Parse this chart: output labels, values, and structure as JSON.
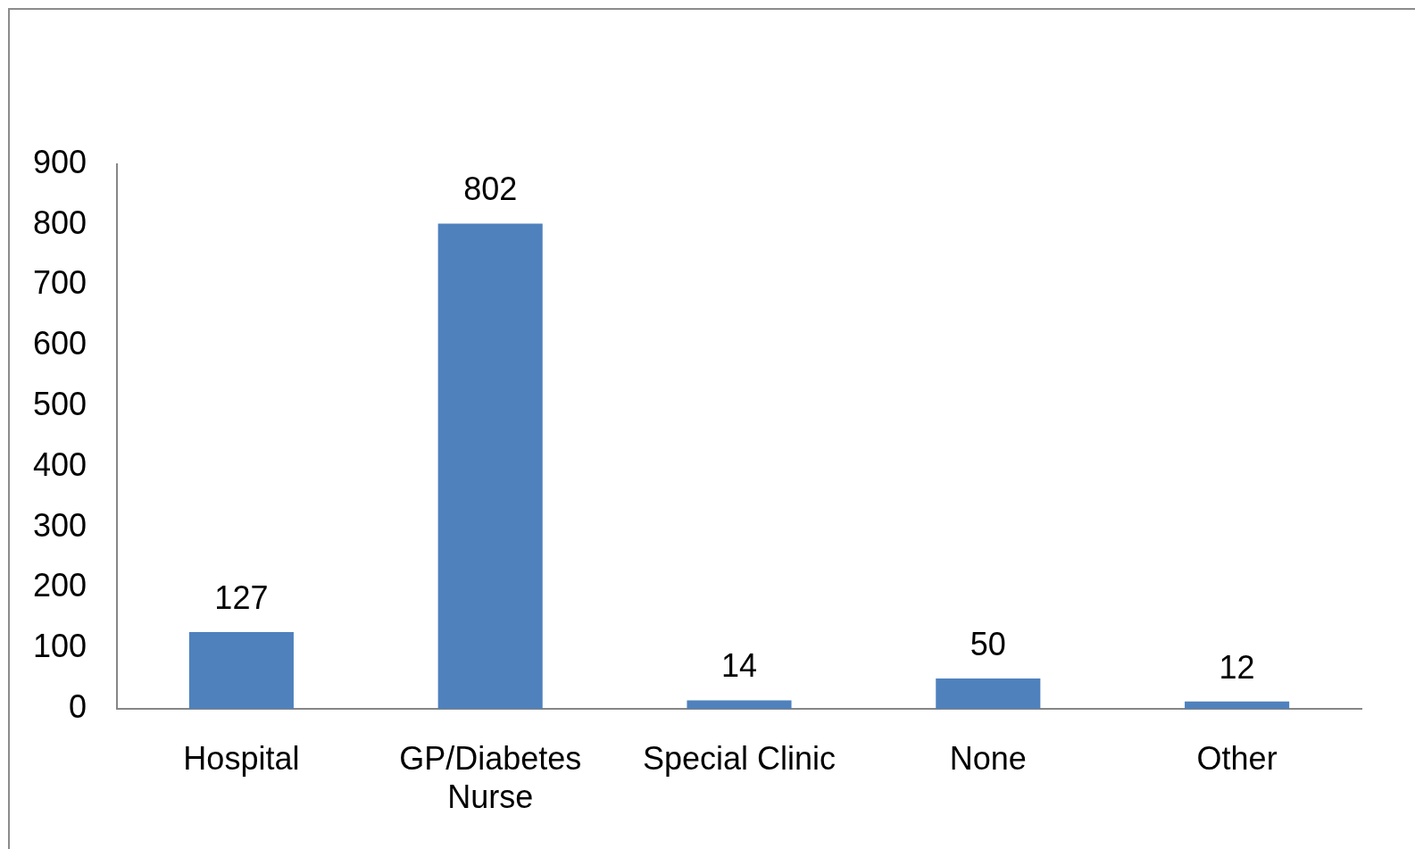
{
  "chart_data": {
    "type": "bar",
    "categories": [
      "Hospital",
      "GP/Diabetes Nurse",
      "Special Clinic",
      "None",
      "Other"
    ],
    "values": [
      127,
      802,
      14,
      50,
      12
    ],
    "color": "#4f81bd",
    "ylim": [
      0,
      900
    ],
    "yticks": [
      0,
      100,
      200,
      300,
      400,
      500,
      600,
      700,
      800,
      900
    ],
    "grid": false,
    "legend": false,
    "data_labels": true
  }
}
